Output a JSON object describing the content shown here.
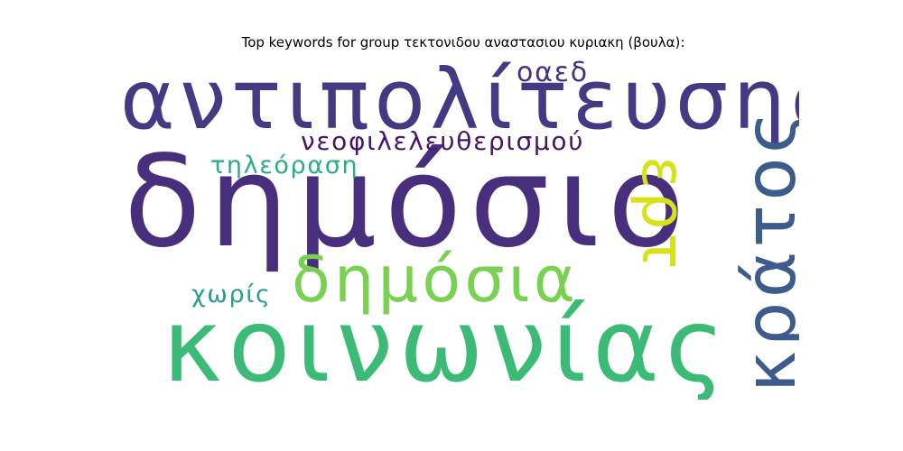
{
  "title": "Top keywords for group τεκτονιδου αναστασιου κυριακη (βουλα):",
  "words": [
    {
      "text": "αντιπολίτευσης",
      "color": "#443983"
    },
    {
      "text": "δημόσιο",
      "color": "#472f7d"
    },
    {
      "text": "κοινωνίας",
      "color": "#3bbb75"
    },
    {
      "text": "δημόσια",
      "color": "#7ad151"
    },
    {
      "text": "νεοφιλελευθερισμού",
      "color": "#481668"
    },
    {
      "text": "τηλεόραση",
      "color": "#29af7f"
    },
    {
      "text": "οαεδ",
      "color": "#46327e"
    },
    {
      "text": "χωρίς",
      "color": "#2a9e88"
    },
    {
      "text": "ερτ",
      "color": "#d8e219"
    },
    {
      "text": "κράτος",
      "color": "#3d5c8c"
    }
  ]
}
